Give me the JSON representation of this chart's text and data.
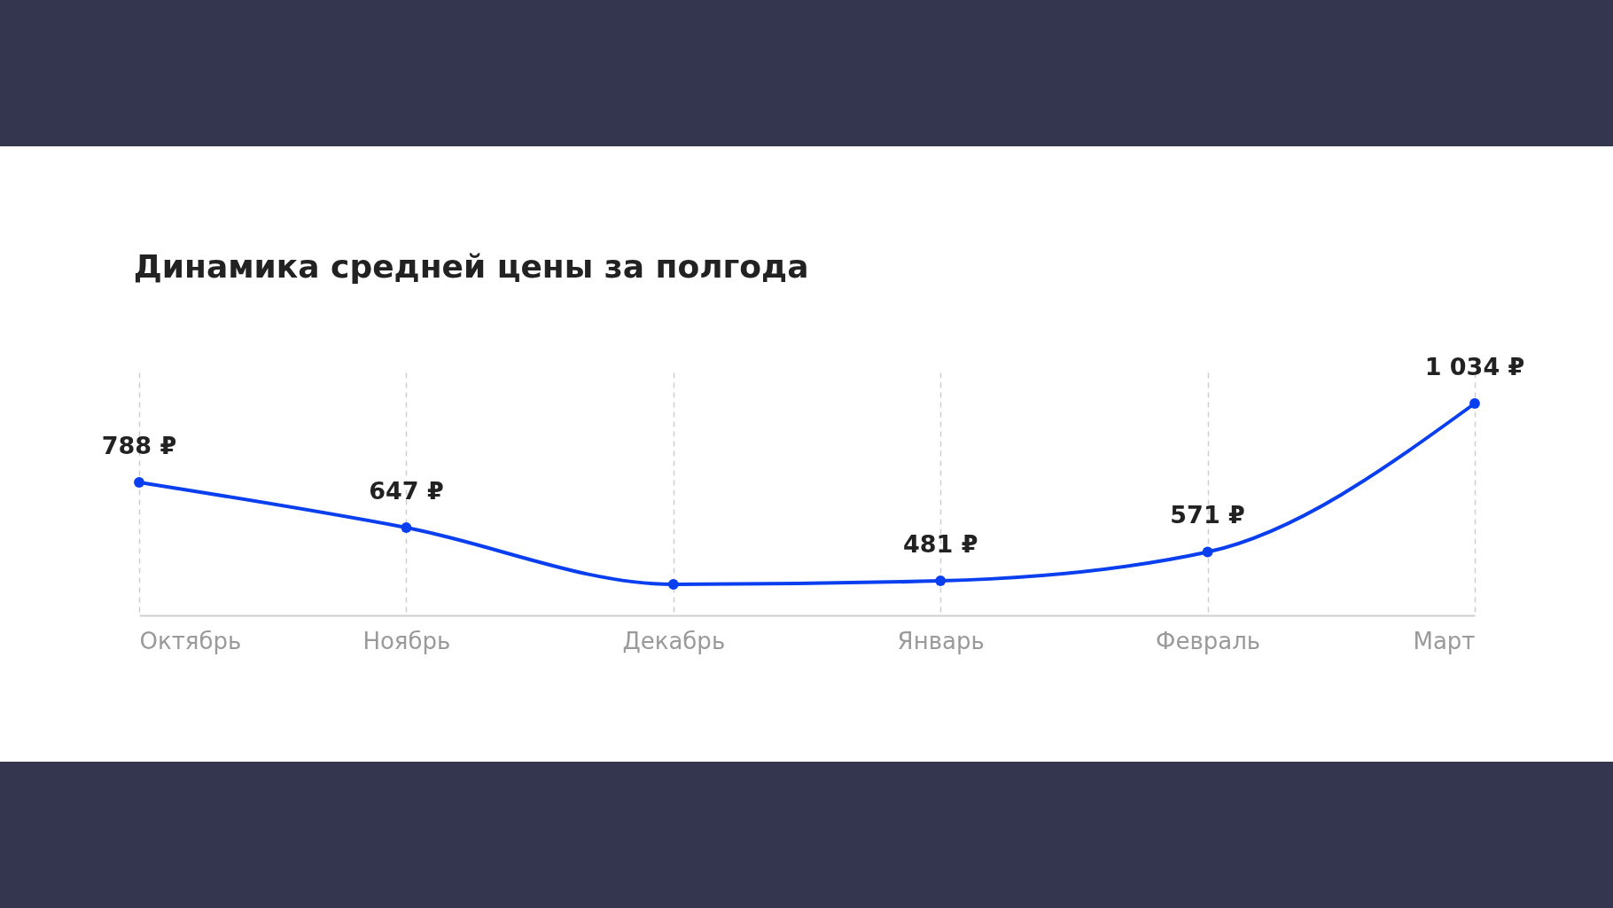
{
  "chart_data": {
    "type": "line",
    "title": "Динамика средней цены за полгода",
    "categories": [
      "Октябрь",
      "Ноябрь",
      "Декабрь",
      "Январь",
      "Февраль",
      "Март"
    ],
    "series": [
      {
        "color": "#0a3ff0",
        "values": [
          788,
          647,
          470,
          481,
          571,
          1034
        ],
        "value_labels": [
          "788 ₽",
          "647 ₽",
          null,
          "481 ₽",
          "571 ₽",
          "1 034 ₽"
        ]
      }
    ],
    "tick_labels": "x",
    "grid": "x",
    "marker": "circle",
    "line_style": "solid"
  }
}
